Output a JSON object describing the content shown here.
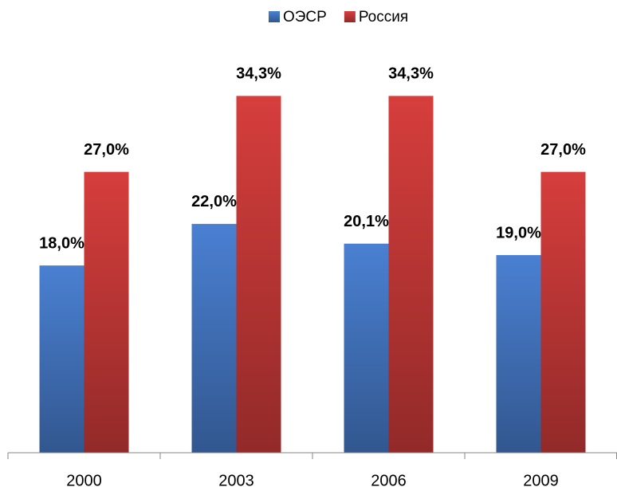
{
  "chart_data": {
    "type": "bar",
    "categories": [
      "2000",
      "2003",
      "2006",
      "2009"
    ],
    "series": [
      {
        "name": "ОЭСР",
        "color": "#4a80d2",
        "values": [
          18.0,
          22.0,
          20.1,
          19.0
        ],
        "value_labels": [
          "18,0%",
          "22,0%",
          "20,1%",
          "19,0%"
        ]
      },
      {
        "name": "Россия",
        "color": "#d63e3c",
        "values": [
          27.0,
          34.3,
          34.3,
          27.0
        ],
        "value_labels": [
          "27,0%",
          "34,3%",
          "34,3%",
          "27,0%"
        ]
      }
    ],
    "ylim": [
      0,
      40
    ],
    "legend": "top"
  }
}
